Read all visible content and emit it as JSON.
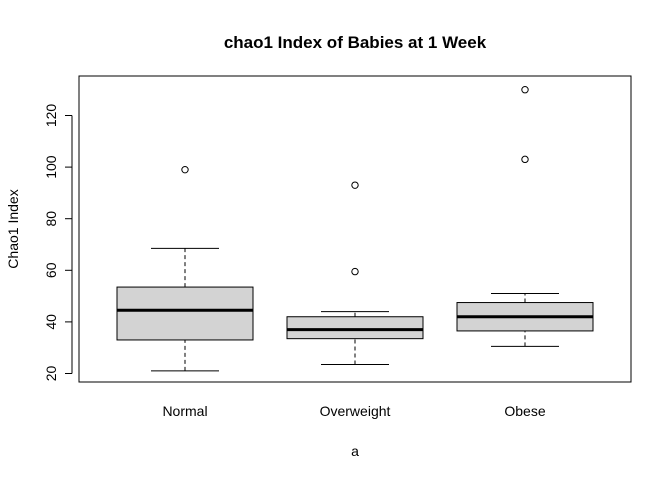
{
  "chart_data": {
    "type": "boxplot",
    "title": "chao1 Index of Babies at 1 Week",
    "xlabel": "a",
    "ylabel": "Chao1 Index",
    "categories": [
      "Normal",
      "Overweight",
      "Obese"
    ],
    "yticks": [
      20,
      40,
      60,
      80,
      100,
      120
    ],
    "ylim": [
      16,
      134
    ],
    "grid": false,
    "legend": "none",
    "box_fill": "#d3d3d3",
    "boxes": [
      {
        "category": "Normal",
        "whisker_low": 21,
        "q1": 33,
        "median": 44.5,
        "q3": 53.5,
        "whisker_high": 68.5,
        "outliers": [
          99
        ]
      },
      {
        "category": "Overweight",
        "whisker_low": 23.5,
        "q1": 33.5,
        "median": 37,
        "q3": 42,
        "whisker_high": 44,
        "outliers": [
          59.5,
          93
        ]
      },
      {
        "category": "Obese",
        "whisker_low": 30.5,
        "q1": 36.5,
        "median": 42,
        "q3": 47.5,
        "whisker_high": 51,
        "outliers": [
          103,
          130
        ]
      }
    ]
  }
}
